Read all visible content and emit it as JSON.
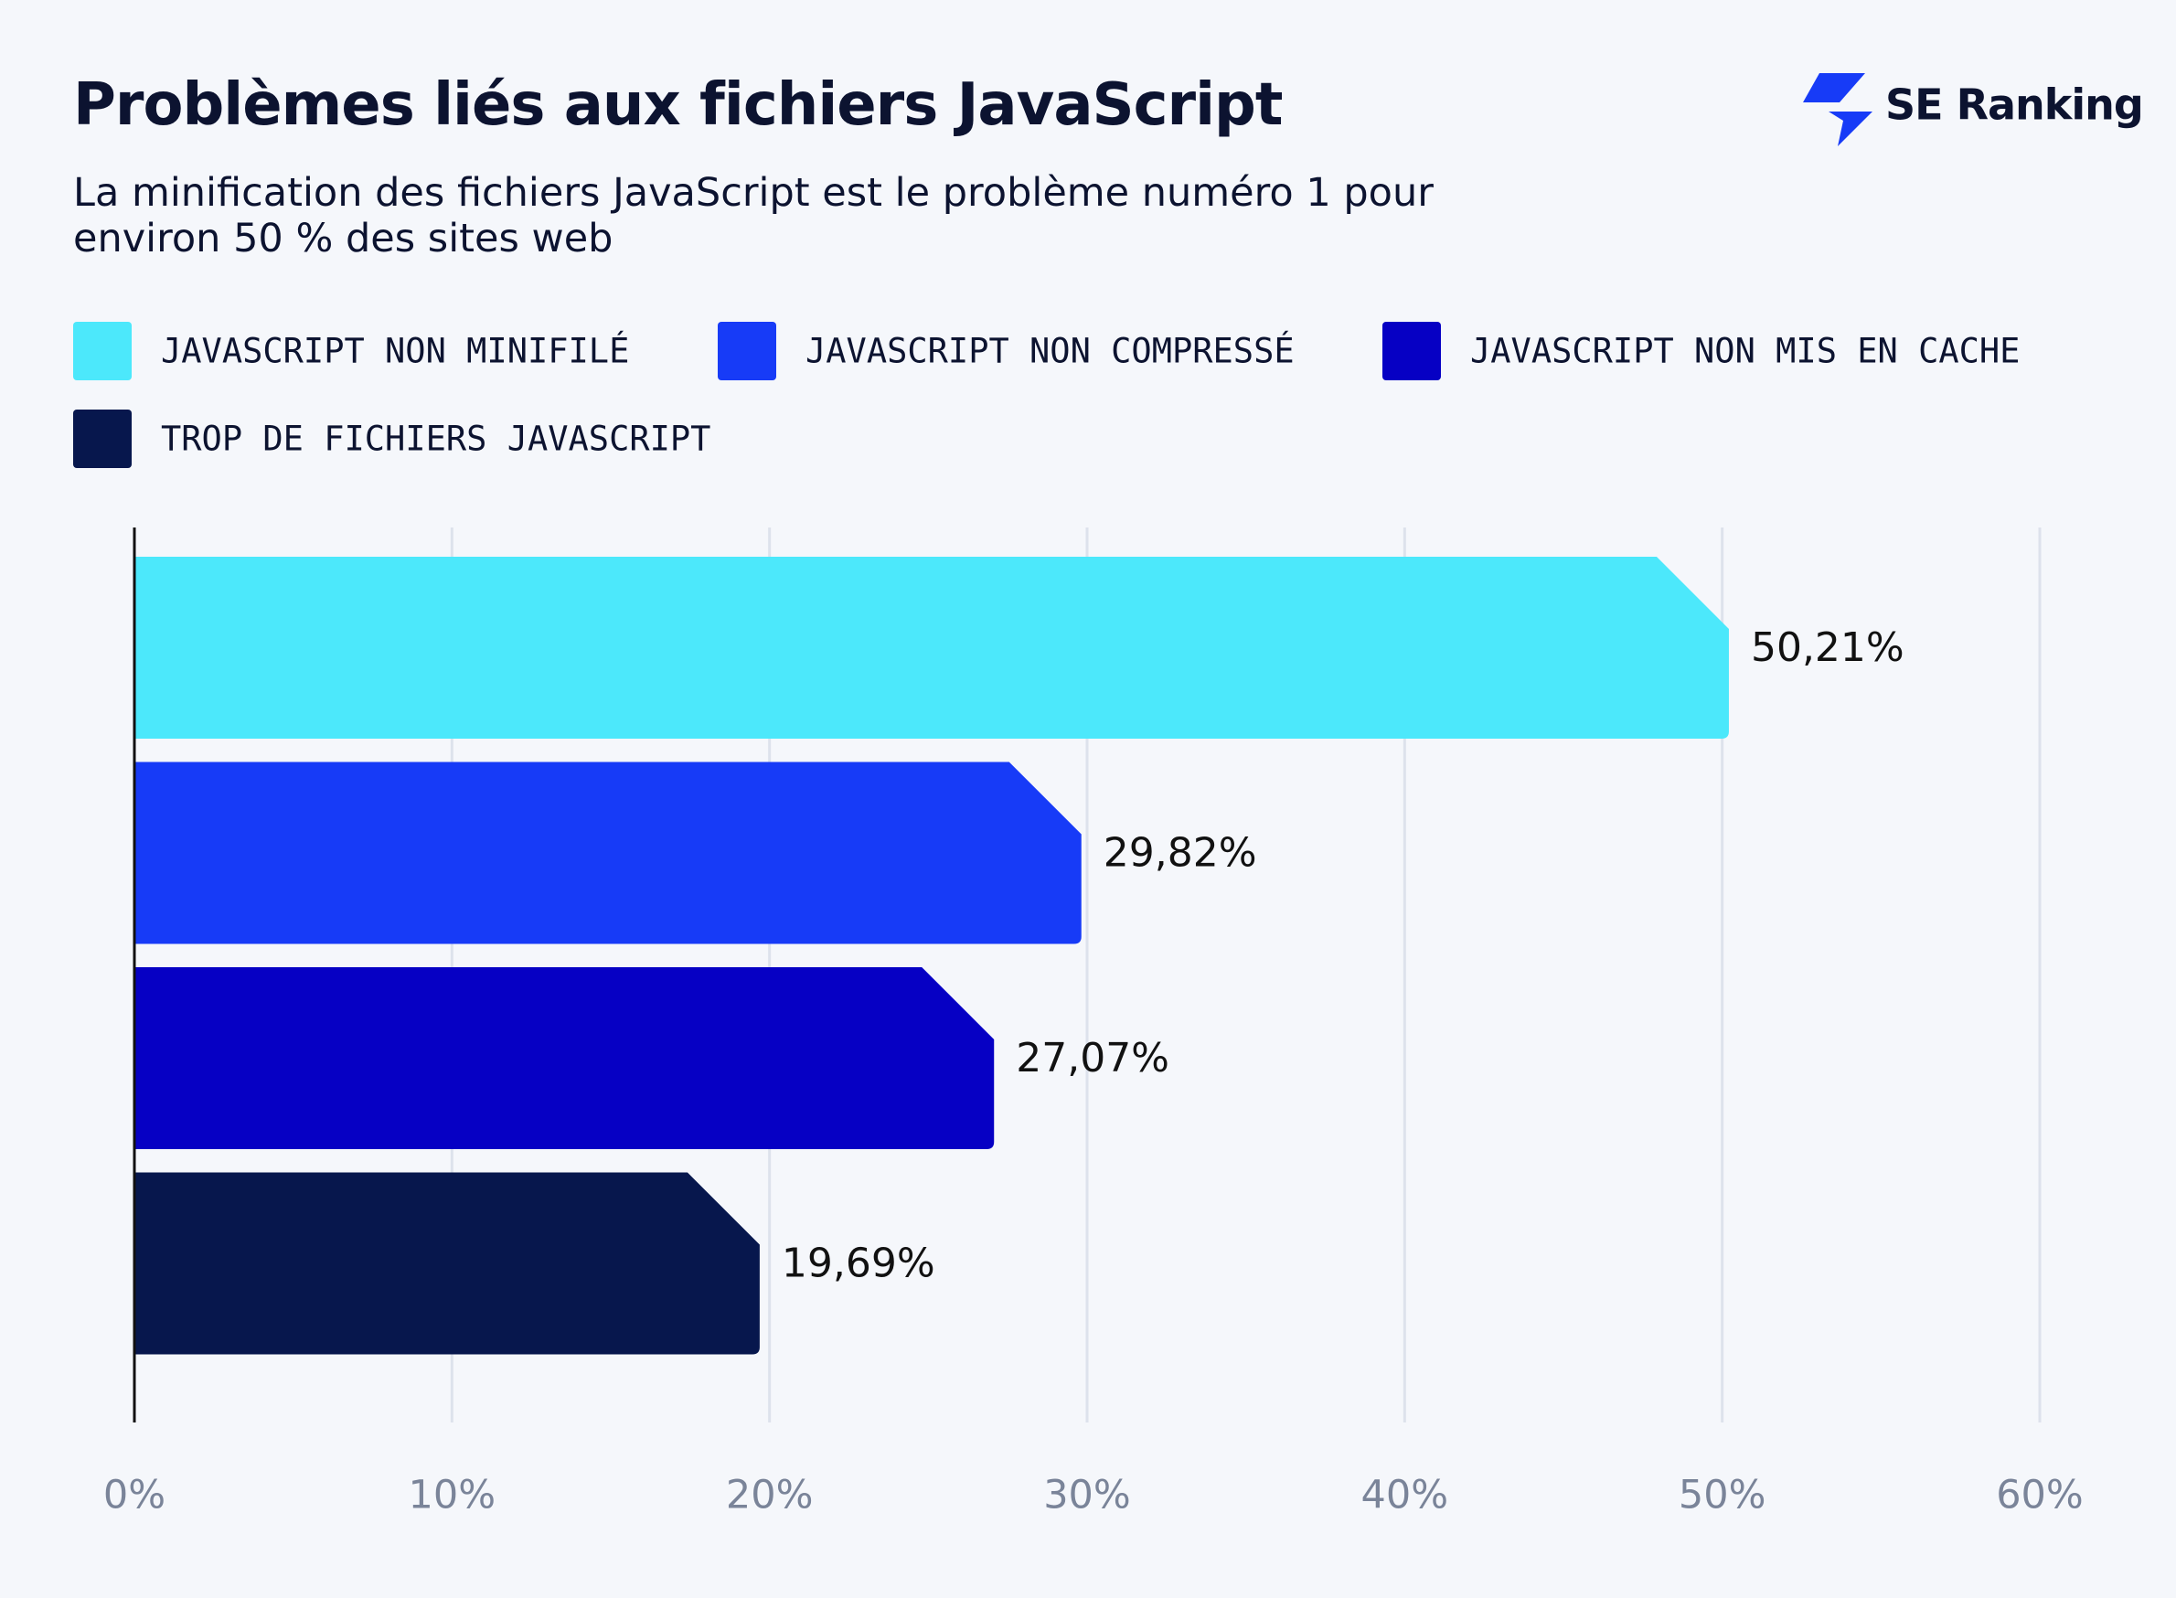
{
  "logo": {
    "text": "SE Ranking"
  },
  "chart_data": {
    "type": "bar",
    "orientation": "horizontal",
    "title": "Problèmes liés aux fichiers JavaScript",
    "subtitle": "La minification des fichiers JavaScript est le problème numéro 1 pour environ 50 % des sites web",
    "series": [
      {
        "name": "JAVASCRIPT NON MINIFILÉ",
        "color": "#4ce8fb",
        "values": [
          50.21
        ],
        "value_labels": [
          "50,21%"
        ]
      },
      {
        "name": "JAVASCRIPT NON COMPRESSÉ",
        "color": "#173bf7",
        "values": [
          29.82
        ],
        "value_labels": [
          "29,82%"
        ]
      },
      {
        "name": "JAVASCRIPT NON MIS EN CACHE",
        "color": "#0600c4",
        "values": [
          27.07
        ],
        "value_labels": [
          "27,07%"
        ]
      },
      {
        "name": "TROP DE FICHIERS JAVASCRIPT",
        "color": "#07174d",
        "values": [
          19.69
        ],
        "value_labels": [
          "19,69%"
        ]
      }
    ],
    "xlim": [
      0,
      60
    ],
    "xticks": [
      {
        "value": 0,
        "label": "0%"
      },
      {
        "value": 10,
        "label": "10%"
      },
      {
        "value": 20,
        "label": "20%"
      },
      {
        "value": 30,
        "label": "30%"
      },
      {
        "value": 40,
        "label": "40%"
      },
      {
        "value": 50,
        "label": "50%"
      },
      {
        "value": 60,
        "label": "60%"
      }
    ],
    "grid": true
  }
}
